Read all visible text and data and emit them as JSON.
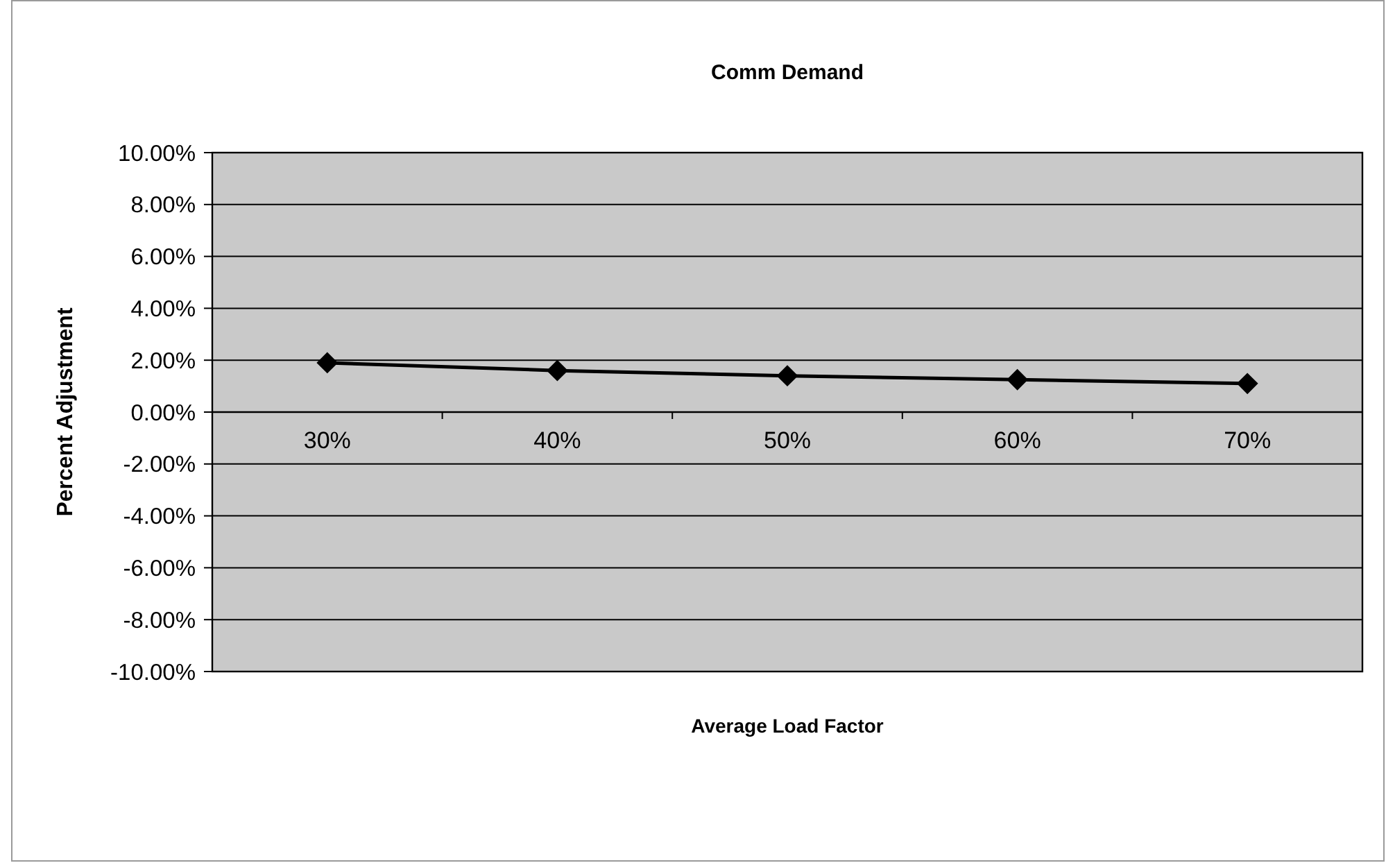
{
  "chart_data": {
    "type": "line",
    "title": "Comm Demand",
    "xlabel": "Average Load Factor",
    "ylabel": "Percent Adjustment",
    "categories": [
      "30%",
      "40%",
      "50%",
      "60%",
      "70%"
    ],
    "series": [
      {
        "color": "#000000",
        "values": [
          1.9,
          1.6,
          1.4,
          1.25,
          1.1
        ]
      }
    ],
    "ylim": [
      -10,
      10
    ],
    "yticks": [
      {
        "value": -10,
        "label": "-10.00%"
      },
      {
        "value": -8,
        "label": "-8.00%"
      },
      {
        "value": -6,
        "label": "-6.00%"
      },
      {
        "value": -4,
        "label": "-4.00%"
      },
      {
        "value": -2,
        "label": "-2.00%"
      },
      {
        "value": 0,
        "label": "0.00%"
      },
      {
        "value": 2,
        "label": "2.00%"
      },
      {
        "value": 4,
        "label": "4.00%"
      },
      {
        "value": 6,
        "label": "6.00%"
      },
      {
        "value": 8,
        "label": "8.00%"
      },
      {
        "value": 10,
        "label": "10.00%"
      }
    ],
    "grid": "y",
    "marker": "diamond",
    "line_style": "solid"
  }
}
